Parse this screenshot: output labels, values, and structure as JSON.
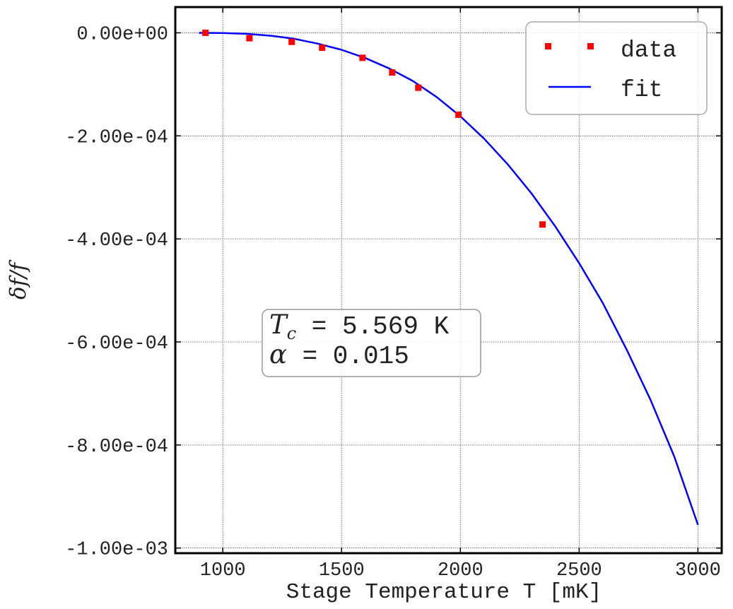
{
  "chart_data": {
    "type": "scatter",
    "xlabel": "Stage Temperature T [mK]",
    "ylabel": "δf/f",
    "xlim": [
      800,
      3100
    ],
    "ylim": [
      -0.00101,
      5e-05
    ],
    "xticks": [
      1000,
      1500,
      2000,
      2500,
      3000
    ],
    "xtick_labels": [
      "1000",
      "1500",
      "2000",
      "2500",
      "3000"
    ],
    "yticks": [
      0,
      -0.0002,
      -0.0004,
      -0.0006,
      -0.0008,
      -0.001
    ],
    "ytick_labels": [
      "0.00e+00",
      "-2.00e-04",
      "-4.00e-04",
      "-6.00e-04",
      "-8.00e-04",
      "-1.00e-03"
    ],
    "grid": true,
    "legend_position": "top-right",
    "series": [
      {
        "name": "data",
        "kind": "markers",
        "color": "#ff0000",
        "x": [
          927,
          1112,
          1290,
          1418,
          1588,
          1713,
          1823,
          1992,
          2346
        ],
        "y": [
          0.0,
          -1.05e-05,
          -1.75e-05,
          -2.9e-05,
          -4.85e-05,
          -7.7e-05,
          -0.0001065,
          -0.000159,
          -0.000372
        ]
      },
      {
        "name": "fit",
        "kind": "line",
        "color": "#0000ff",
        "x": [
          900,
          1000,
          1100,
          1200,
          1300,
          1400,
          1500,
          1600,
          1700,
          1800,
          1900,
          2000,
          2100,
          2200,
          2300,
          2400,
          2500,
          2600,
          2700,
          2800,
          2900,
          3000
        ],
        "y": [
          0.0,
          -5e-07,
          -2e-06,
          -5.5e-06,
          -1.15e-05,
          -2.1e-05,
          -3.3e-05,
          -4.9e-05,
          -6.9e-05,
          -9.35e-05,
          -0.0001245,
          -0.000162,
          -0.0002055,
          -0.0002555,
          -0.000312,
          -0.000376,
          -0.000447,
          -0.000525,
          -0.000615,
          -0.000712,
          -0.000822,
          -0.000955
        ]
      }
    ],
    "annotation": {
      "line1_symbol": "T",
      "line1_sub": "c",
      "line1_rest": " = 5.569 K",
      "line2_symbol": "α",
      "line2_rest": " = 0.015"
    }
  }
}
